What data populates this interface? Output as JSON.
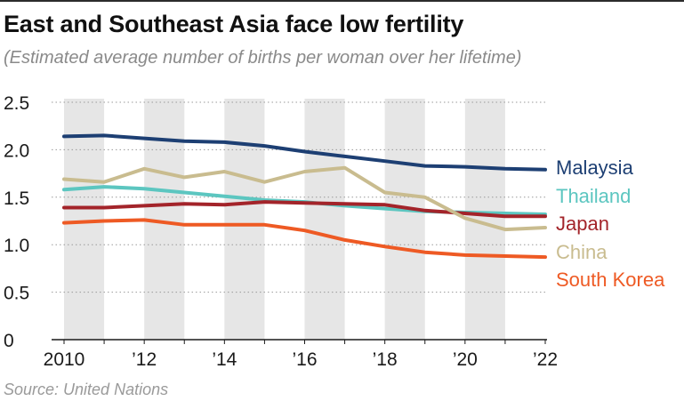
{
  "header": {
    "title": "East and Southeast Asia face low fertility",
    "subtitle": "(Estimated average number of births per woman over her lifetime)"
  },
  "footer": {
    "source": "Source: United Nations"
  },
  "chart_data": {
    "type": "line",
    "title": "East and Southeast Asia face low fertility",
    "subtitle": "(Estimated average number of births per woman over her lifetime)",
    "xlabel": "",
    "ylabel": "",
    "x": [
      2010,
      2011,
      2012,
      2013,
      2014,
      2015,
      2016,
      2017,
      2018,
      2019,
      2020,
      2021,
      2022
    ],
    "xlim": [
      2010,
      2022
    ],
    "ylim": [
      0,
      2.5
    ],
    "x_ticks": [
      2010,
      2012,
      2014,
      2016,
      2018,
      2020,
      2022
    ],
    "x_tick_labels": [
      "2010",
      "’12",
      "’14",
      "’16",
      "’18",
      "’20",
      "’22"
    ],
    "y_ticks": [
      0,
      0.5,
      1.0,
      1.5,
      2.0,
      2.5
    ],
    "y_tick_labels": [
      "0",
      "0.5",
      "1.0",
      "1.5",
      "2.0",
      "2.5"
    ],
    "grid": true,
    "shaded_years": [
      2010,
      2012,
      2014,
      2016,
      2018,
      2020
    ],
    "legend": "right, direct labels at line ends",
    "series": [
      {
        "name": "Malaysia",
        "color": "#1d3f73",
        "values": [
          2.14,
          2.15,
          2.12,
          2.09,
          2.08,
          2.04,
          1.98,
          1.93,
          1.88,
          1.83,
          1.82,
          1.8,
          1.79
        ]
      },
      {
        "name": "Thailand",
        "color": "#5cc6c0",
        "values": [
          1.58,
          1.61,
          1.59,
          1.55,
          1.51,
          1.47,
          1.45,
          1.41,
          1.38,
          1.35,
          1.34,
          1.33,
          1.32
        ]
      },
      {
        "name": "Japan",
        "color": "#a3242a",
        "values": [
          1.39,
          1.39,
          1.41,
          1.43,
          1.42,
          1.45,
          1.44,
          1.43,
          1.42,
          1.36,
          1.33,
          1.3,
          1.3
        ]
      },
      {
        "name": "China",
        "color": "#c9bc8f",
        "values": [
          1.69,
          1.66,
          1.8,
          1.71,
          1.77,
          1.66,
          1.77,
          1.81,
          1.55,
          1.5,
          1.28,
          1.16,
          1.18
        ]
      },
      {
        "name": "South Korea",
        "color": "#ee5a24",
        "values": [
          1.23,
          1.25,
          1.26,
          1.21,
          1.21,
          1.21,
          1.15,
          1.05,
          0.98,
          0.92,
          0.89,
          0.88,
          0.87
        ]
      }
    ]
  }
}
